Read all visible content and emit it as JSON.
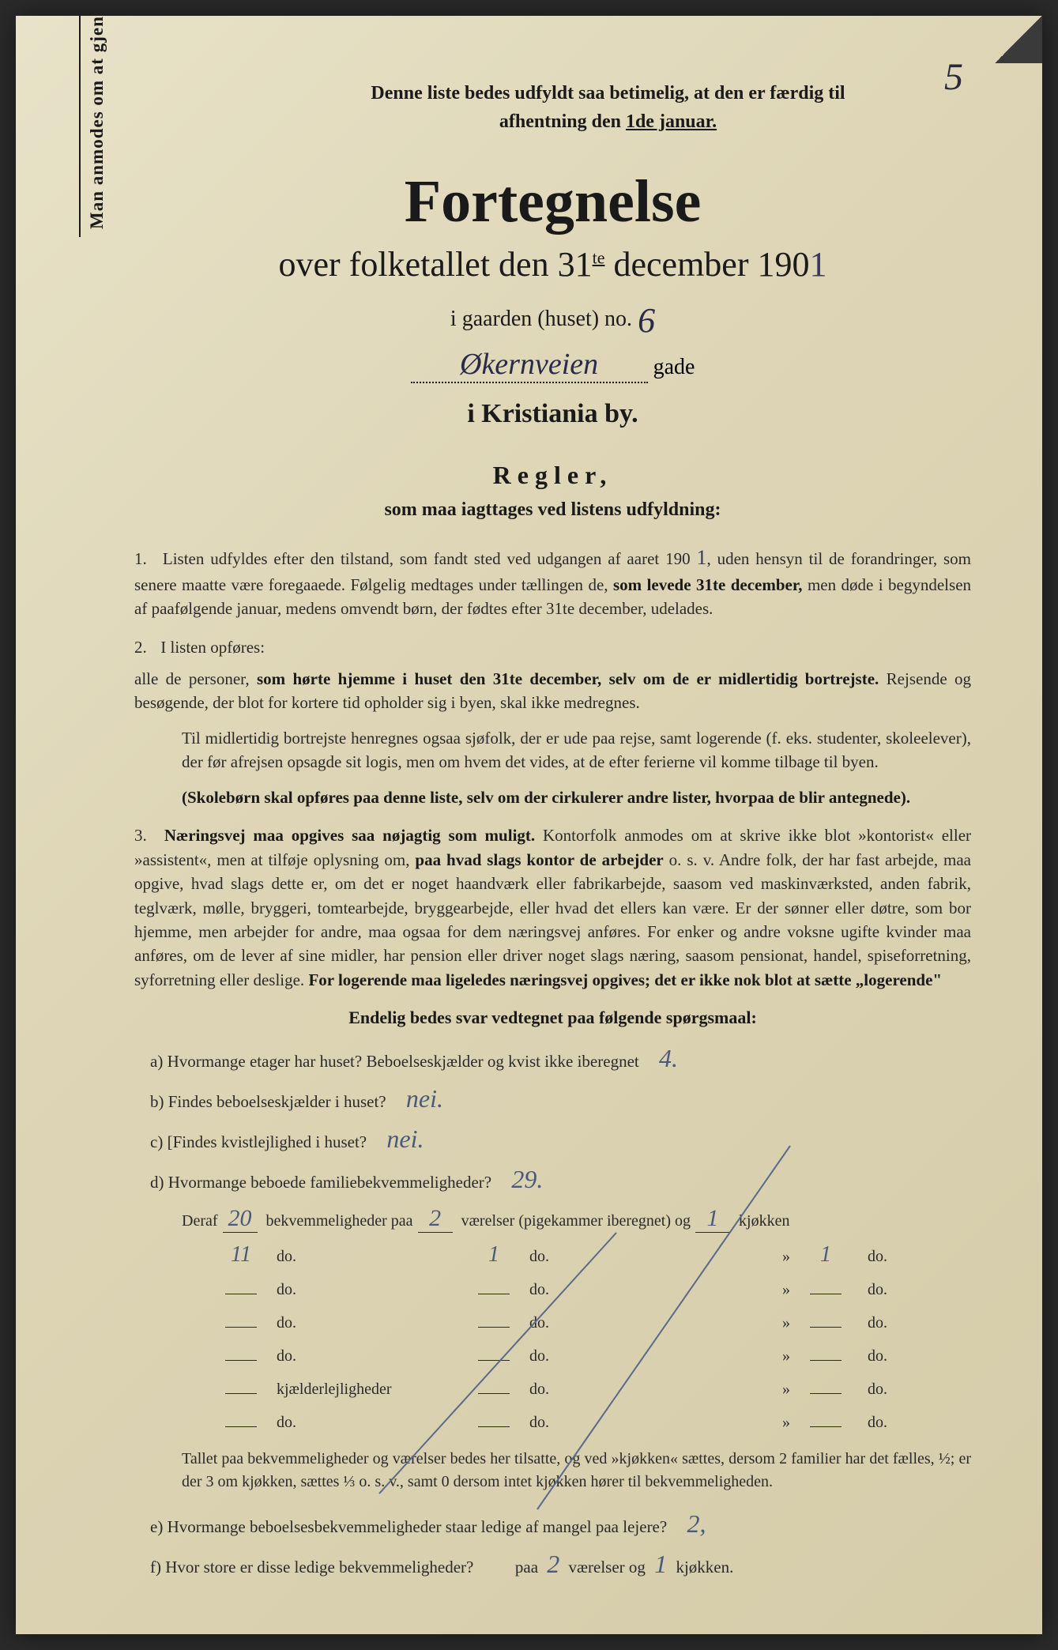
{
  "page_number": "5",
  "top_note": {
    "line1": "Denne liste bedes udfyldt saa betimelig, at den er færdig til",
    "line2_pre": "afhentning den ",
    "line2_underline": "1de januar."
  },
  "side_text": "Man anmodes om at gjennemlæse og nøje at befølge de paa fortegnelsen trykte overskrifter og anvisninger.",
  "title": "Fortegnelse",
  "subtitle": {
    "pre": "over folketallet den 31",
    "sup": "te",
    "mid": " december 190",
    "year_hand": "1"
  },
  "house_line": {
    "pre": "i gaarden (huset) no.",
    "num": "6"
  },
  "street": {
    "value": "Økernveien",
    "suffix_line": " gade"
  },
  "city": "i Kristiania by.",
  "regler_title": "Regler,",
  "regler_sub": "som maa iagttages ved listens udfyldning:",
  "rules": {
    "r1": {
      "num": "1.",
      "text_a": "Listen udfyldes efter den tilstand, som fandt sted ved udgangen af aaret 190",
      "year": "1",
      "text_b": ", uden hensyn til de forandringer, som senere maatte være foregaaede. Følgelig medtages under tællingen de, ",
      "bold_b": "som levede 31te december,",
      "text_c": " men døde i begyndelsen af paafølgende januar, medens omvendt børn, der fødtes efter 31te december, udelades."
    },
    "r2": {
      "num": "2.",
      "text_a": "I listen opføres:",
      "para1_a": "alle de personer, ",
      "para1_b": "som hørte hjemme i huset den 31te december, selv om de er midlertidig bortrejste.",
      "para1_c": " Rejsende og besøgende, der blot for kortere tid opholder sig i byen, skal ikke medregnes.",
      "para2": "Til midlertidig bortrejste henregnes ogsaa sjøfolk, der er ude paa rejse, samt logerende (f. eks. studenter, skoleelever), der før afrejsen opsagde sit logis, men om hvem det vides, at de efter ferierne vil komme tilbage til byen.",
      "para3": "(Skolebørn skal opføres paa denne liste, selv om der cirkulerer andre lister, hvorpaa de blir antegnede)."
    },
    "r3": {
      "num": "3.",
      "bold_a": "Næringsvej maa opgives saa nøjagtig som muligt.",
      "text_a": " Kontorfolk anmodes om at skrive ikke blot »kontorist« eller »assistent«, men at tilføje oplysning om, ",
      "bold_b": "paa hvad slags kontor de arbejder",
      "text_b": " o. s. v. Andre folk, der har fast arbejde, maa opgive, hvad slags dette er, om det er noget haandværk eller fabrikarbejde, saasom ved maskinværksted, anden fabrik, teglværk, mølle, bryggeri, tomtearbejde, bryggearbejde, eller hvad det ellers kan være. Er der sønner eller døtre, som bor hjemme, men arbejder for andre, maa ogsaa for dem næringsvej anføres. For enker og andre voksne ugifte kvinder maa anføres, om de lever af sine midler, har pension eller driver noget slags næring, saasom pensionat, handel, spiseforretning, syforretning eller deslige. ",
      "bold_c": "For logerende maa ligeledes næringsvej opgives; det er ikke nok blot at sætte „logerende\""
    }
  },
  "endelig": "Endelig bedes svar vedtegnet paa følgende spørgsmaal:",
  "q": {
    "a": {
      "label": "a)",
      "text": "Hvormange etager har huset? Beboelseskjælder og kvist ikke iberegnet",
      "ans": "4."
    },
    "b": {
      "label": "b)",
      "text": "Findes beboelseskjælder i huset?",
      "ans": "nei."
    },
    "c": {
      "label": "c)",
      "text": "[Findes kvistlejlighed i huset?",
      "ans": "nei."
    },
    "d": {
      "label": "d)",
      "text": "Hvormange beboede familiebekvemmeligheder?",
      "ans": "29."
    }
  },
  "deraf": {
    "pre": "Deraf",
    "a1": "20",
    "mid1": "bekvemmeligheder paa",
    "a2": "2",
    "mid2": "værelser (pigekammer iberegnet) og",
    "a3": "1",
    "suffix": "kjøkken"
  },
  "table_rows": [
    {
      "c1": "11",
      "c2": "do.",
      "c3": "1",
      "c4": "do.",
      "c5": "»",
      "c6": "1",
      "c7": "do."
    },
    {
      "c1": "",
      "c2": "do.",
      "c3": "",
      "c4": "do.",
      "c5": "»",
      "c6": "",
      "c7": "do."
    },
    {
      "c1": "",
      "c2": "do.",
      "c3": "",
      "c4": "do.",
      "c5": "»",
      "c6": "",
      "c7": "do."
    },
    {
      "c1": "",
      "c2": "do.",
      "c3": "",
      "c4": "do.",
      "c5": "»",
      "c6": "",
      "c7": "do."
    },
    {
      "c1": "",
      "c2": "kjælderlejligheder",
      "c3": "",
      "c4": "do.",
      "c5": "»",
      "c6": "",
      "c7": "do."
    },
    {
      "c1": "",
      "c2": "do.",
      "c3": "",
      "c4": "do.",
      "c5": "»",
      "c6": "",
      "c7": "do."
    }
  ],
  "table_note": "Tallet paa bekvemmeligheder og værelser bedes her tilsatte, og ved »kjøkken« sættes, dersom 2 familier har det fælles, ½; er der 3 om kjøkken, sættes ⅓ o. s. v., samt 0 dersom intet kjøkken hører til bekvemmeligheden.",
  "q_e": {
    "label": "e)",
    "text": "Hvormange beboelsesbekvemmeligheder staar ledige af mangel paa lejere?",
    "ans": "2,"
  },
  "q_f": {
    "label": "f)",
    "text_a": "Hvor store er disse ledige bekvemmeligheder?",
    "mid1": "paa",
    "a1": "2",
    "mid2": "værelser og",
    "a2": "1",
    "suffix": "kjøkken."
  },
  "colors": {
    "paper_bg": "#ddd5b5",
    "ink": "#1a1a1a",
    "hand_ink": "#4a5a7a"
  }
}
